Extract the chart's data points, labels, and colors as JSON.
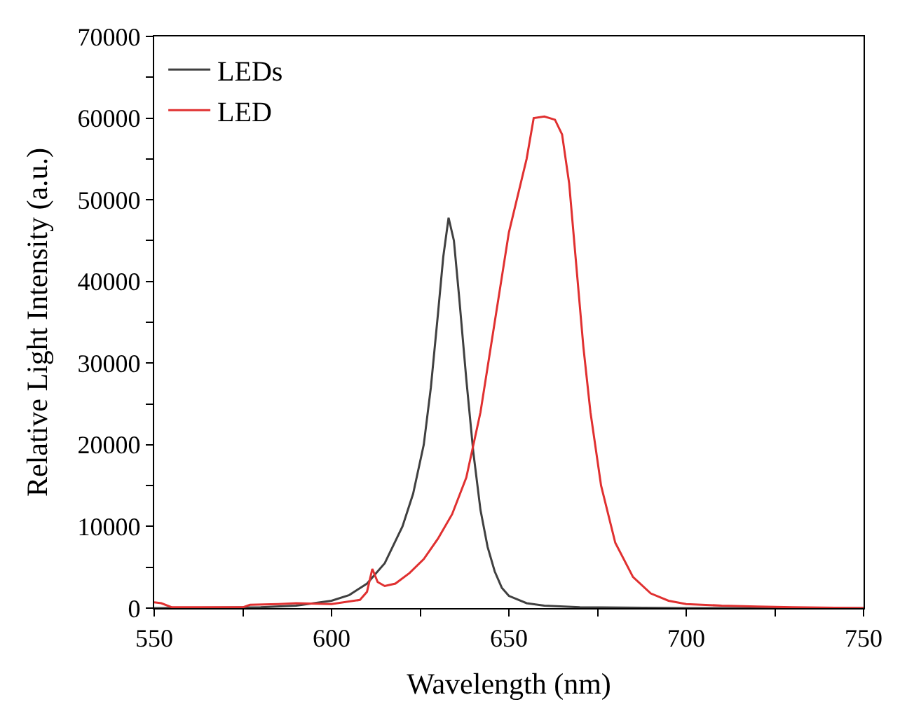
{
  "chart_data": {
    "type": "line",
    "xlabel": "Wavelength (nm)",
    "ylabel": "Relative Light Intensity (a.u.)",
    "xlim": [
      550,
      750
    ],
    "ylim": [
      0,
      70000
    ],
    "xticks": [
      550,
      {
        "value": 575,
        "label": null
      },
      600,
      {
        "value": 625,
        "label": null
      },
      650,
      {
        "value": 675,
        "label": null
      },
      700,
      {
        "value": 725,
        "label": null
      },
      750
    ],
    "yticks": [
      0,
      {
        "value": 5000,
        "label": null
      },
      10000,
      {
        "value": 15000,
        "label": null
      },
      20000,
      {
        "value": 25000,
        "label": null
      },
      30000,
      {
        "value": 35000,
        "label": null
      },
      40000,
      {
        "value": 45000,
        "label": null
      },
      50000,
      {
        "value": 55000,
        "label": null
      },
      60000,
      {
        "value": 65000,
        "label": null
      },
      70000
    ],
    "legend": "top left",
    "line_style": "solid",
    "marker": "none",
    "series": [
      {
        "name": "LEDs",
        "color": "#404040",
        "x": [
          550,
          580,
          590,
          600,
          605,
          610,
          615,
          620,
          623,
          626,
          628,
          630,
          631.5,
          633,
          634.5,
          636,
          638,
          640,
          642,
          644,
          646,
          648,
          650,
          655,
          660,
          670,
          700,
          750
        ],
        "values": [
          0,
          100,
          300,
          900,
          1600,
          3000,
          5500,
          10000,
          14000,
          20000,
          27000,
          36000,
          43000,
          47800,
          45000,
          38000,
          28000,
          19000,
          12000,
          7500,
          4500,
          2500,
          1500,
          600,
          300,
          100,
          0,
          0
        ]
      },
      {
        "name": "LED",
        "color": "#e03030",
        "x": [
          550,
          552,
          555,
          575,
          577,
          585,
          590,
          600,
          608,
          610,
          611.5,
          613,
          615,
          618,
          622,
          626,
          630,
          634,
          638,
          642,
          646,
          650,
          655,
          657,
          660,
          663,
          665,
          667,
          669,
          671,
          673,
          676,
          680,
          685,
          690,
          695,
          700,
          710,
          720,
          730,
          750
        ],
        "values": [
          700,
          600,
          100,
          100,
          400,
          500,
          600,
          500,
          1000,
          2000,
          4800,
          3200,
          2700,
          3000,
          4300,
          6000,
          8500,
          11500,
          16000,
          24000,
          35000,
          46000,
          55000,
          60000,
          60200,
          59800,
          58000,
          52000,
          42000,
          32000,
          24000,
          15000,
          8000,
          3800,
          1800,
          900,
          500,
          300,
          200,
          100,
          0
        ]
      }
    ]
  }
}
